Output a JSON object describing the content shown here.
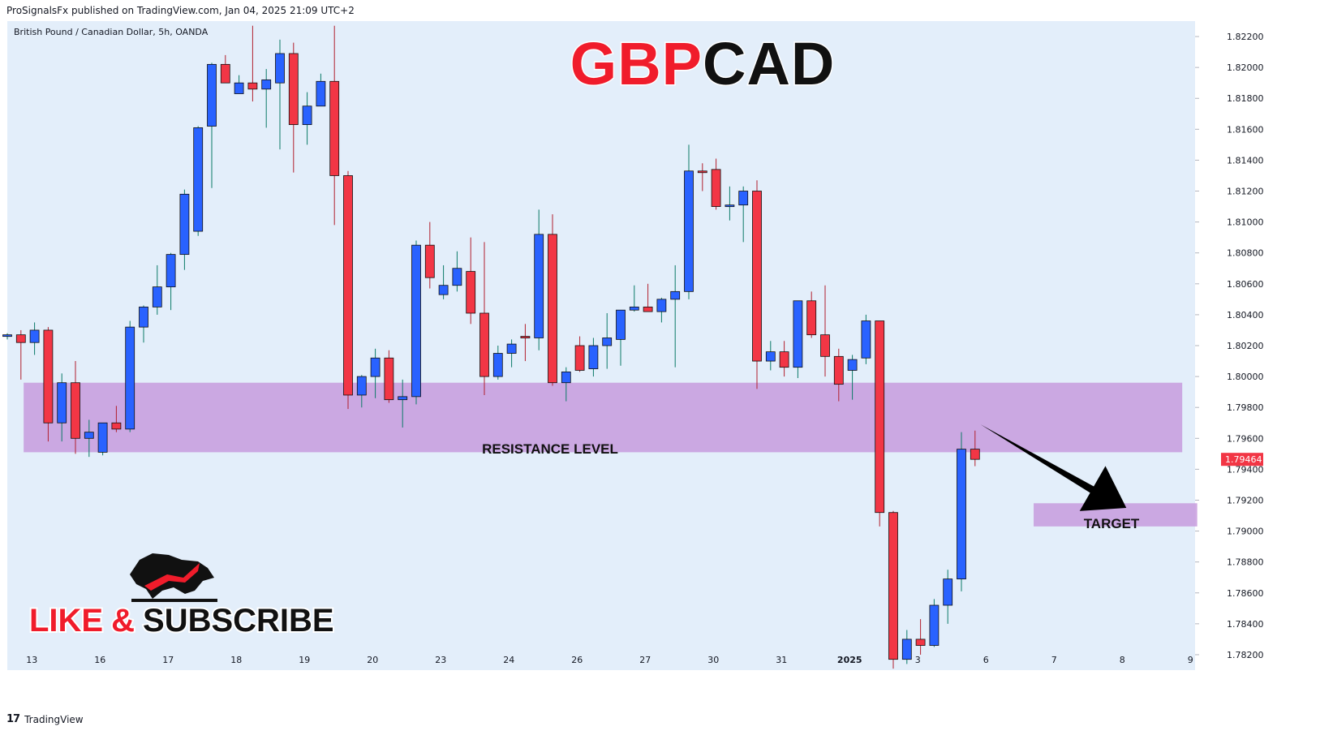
{
  "header": {
    "publisher_line": "ProSignalsFx published on TradingView.com, Jan 04, 2025 21:09 UTC+2"
  },
  "symbol_line": "British Pound / Canadian Dollar, 5h, OANDA",
  "title": {
    "part1": "GBP",
    "part2": "CAD",
    "color1": "#f01c2b",
    "color2": "#111111"
  },
  "footer": {
    "logo": "17",
    "brand": "TradingView"
  },
  "annotations": {
    "resistance_label": "RESISTANCE LEVEL",
    "target_label": "TARGET",
    "like_label": "LIKE",
    "amp_label": "&",
    "subscribe_label": "SUBSCRIBE"
  },
  "colors": {
    "up": "#2962ff",
    "down": "#f23645",
    "zone": "#c79bdd",
    "background": "#e3eefa",
    "price_tag": "#f23645"
  },
  "chart_data": {
    "type": "candlestick",
    "title": "GBPCAD",
    "ylim": [
      1.781,
      1.823
    ],
    "y_ticks": [
      "1.82200",
      "1.82000",
      "1.81800",
      "1.81600",
      "1.81400",
      "1.81200",
      "1.81000",
      "1.80800",
      "1.80600",
      "1.80400",
      "1.80200",
      "1.80000",
      "1.79800",
      "1.79600",
      "1.79400",
      "1.79200",
      "1.79000",
      "1.78800",
      "1.78600",
      "1.78400",
      "1.78200"
    ],
    "x_labels": [
      {
        "label": "13",
        "index": 1.8
      },
      {
        "label": "16",
        "index": 6.8
      },
      {
        "label": "17",
        "index": 11.8
      },
      {
        "label": "18",
        "index": 16.8
      },
      {
        "label": "19",
        "index": 21.8
      },
      {
        "label": "20",
        "index": 26.8
      },
      {
        "label": "23",
        "index": 31.8
      },
      {
        "label": "24",
        "index": 36.8
      },
      {
        "label": "26",
        "index": 41.8
      },
      {
        "label": "27",
        "index": 46.8
      },
      {
        "label": "30",
        "index": 51.8
      },
      {
        "label": "31",
        "index": 56.8
      },
      {
        "label": "2025",
        "index": 61.8
      },
      {
        "label": "3",
        "index": 66.8
      },
      {
        "label": "6",
        "index": 71.8
      },
      {
        "label": "7",
        "index": 76.8
      },
      {
        "label": "8",
        "index": 81.8
      },
      {
        "label": "9",
        "index": 86.8
      }
    ],
    "current_price": "1.79464",
    "resistance_zone": {
      "low": 1.7951,
      "high": 1.7996,
      "from_index": 1.2,
      "to_index": 86.2
    },
    "target_zone": {
      "low": 1.7903,
      "high": 1.7918,
      "from_index": 75.3,
      "to_index": 87.3
    },
    "arrow": {
      "from": [
        71.4,
        1.7969
      ],
      "to": [
        82.1,
        1.7915
      ]
    },
    "candles": [
      {
        "o": 1.80262,
        "h": 1.8028,
        "l": 1.8024,
        "c": 1.8027
      },
      {
        "o": 1.8027,
        "h": 1.803,
        "l": 1.7998,
        "c": 1.8022
      },
      {
        "o": 1.8022,
        "h": 1.8035,
        "l": 1.8014,
        "c": 1.803
      },
      {
        "o": 1.803,
        "h": 1.8032,
        "l": 1.7958,
        "c": 1.797
      },
      {
        "o": 1.797,
        "h": 1.8002,
        "l": 1.7958,
        "c": 1.7996
      },
      {
        "o": 1.7996,
        "h": 1.801,
        "l": 1.795,
        "c": 1.796
      },
      {
        "o": 1.796,
        "h": 1.7972,
        "l": 1.7948,
        "c": 1.7964
      },
      {
        "o": 1.7951,
        "h": 1.797,
        "l": 1.7949,
        "c": 1.797
      },
      {
        "o": 1.797,
        "h": 1.7981,
        "l": 1.7964,
        "c": 1.7966
      },
      {
        "o": 1.7966,
        "h": 1.8036,
        "l": 1.7964,
        "c": 1.8032
      },
      {
        "o": 1.8032,
        "h": 1.8046,
        "l": 1.8022,
        "c": 1.8045
      },
      {
        "o": 1.8045,
        "h": 1.8072,
        "l": 1.804,
        "c": 1.8058
      },
      {
        "o": 1.8058,
        "h": 1.808,
        "l": 1.8043,
        "c": 1.8079
      },
      {
        "o": 1.8079,
        "h": 1.8121,
        "l": 1.8069,
        "c": 1.8118
      },
      {
        "o": 1.8094,
        "h": 1.8162,
        "l": 1.8091,
        "c": 1.8161
      },
      {
        "o": 1.8162,
        "h": 1.8203,
        "l": 1.8122,
        "c": 1.8202
      },
      {
        "o": 1.8202,
        "h": 1.8208,
        "l": 1.819,
        "c": 1.819
      },
      {
        "o": 1.8183,
        "h": 1.8195,
        "l": 1.8183,
        "c": 1.819
      },
      {
        "o": 1.819,
        "h": 1.8227,
        "l": 1.8178,
        "c": 1.8186
      },
      {
        "o": 1.8186,
        "h": 1.8199,
        "l": 1.8161,
        "c": 1.8192
      },
      {
        "o": 1.819,
        "h": 1.8218,
        "l": 1.8147,
        "c": 1.8209
      },
      {
        "o": 1.8209,
        "h": 1.8216,
        "l": 1.8132,
        "c": 1.8163
      },
      {
        "o": 1.8163,
        "h": 1.8184,
        "l": 1.815,
        "c": 1.8175
      },
      {
        "o": 1.8175,
        "h": 1.8196,
        "l": 1.8176,
        "c": 1.8191
      },
      {
        "o": 1.8191,
        "h": 1.8227,
        "l": 1.8098,
        "c": 1.813
      },
      {
        "o": 1.813,
        "h": 1.8133,
        "l": 1.7979,
        "c": 1.7988
      },
      {
        "o": 1.7988,
        "h": 1.8001,
        "l": 1.798,
        "c": 1.8
      },
      {
        "o": 1.8,
        "h": 1.8018,
        "l": 1.7986,
        "c": 1.8012
      },
      {
        "o": 1.8012,
        "h": 1.8017,
        "l": 1.7983,
        "c": 1.7985
      },
      {
        "o": 1.7985,
        "h": 1.7998,
        "l": 1.7967,
        "c": 1.7987
      },
      {
        "o": 1.7987,
        "h": 1.8088,
        "l": 1.7982,
        "c": 1.8085
      },
      {
        "o": 1.8085,
        "h": 1.81,
        "l": 1.8057,
        "c": 1.8064
      },
      {
        "o": 1.8053,
        "h": 1.8072,
        "l": 1.805,
        "c": 1.8059
      },
      {
        "o": 1.8059,
        "h": 1.8081,
        "l": 1.8055,
        "c": 1.807
      },
      {
        "o": 1.8068,
        "h": 1.809,
        "l": 1.8034,
        "c": 1.8041
      },
      {
        "o": 1.8041,
        "h": 1.8087,
        "l": 1.7988,
        "c": 1.8
      },
      {
        "o": 1.8,
        "h": 1.802,
        "l": 1.7998,
        "c": 1.8015
      },
      {
        "o": 1.8015,
        "h": 1.8024,
        "l": 1.8006,
        "c": 1.8021
      },
      {
        "o": 1.8026,
        "h": 1.8034,
        "l": 1.801,
        "c": 1.8025
      },
      {
        "o": 1.8025,
        "h": 1.8108,
        "l": 1.8017,
        "c": 1.8092
      },
      {
        "o": 1.8092,
        "h": 1.8105,
        "l": 1.7994,
        "c": 1.7996
      },
      {
        "o": 1.7996,
        "h": 1.8006,
        "l": 1.7984,
        "c": 1.8003
      },
      {
        "o": 1.802,
        "h": 1.8026,
        "l": 1.8003,
        "c": 1.8004
      },
      {
        "o": 1.8005,
        "h": 1.8025,
        "l": 1.8,
        "c": 1.802
      },
      {
        "o": 1.802,
        "h": 1.8041,
        "l": 1.8005,
        "c": 1.8025
      },
      {
        "o": 1.8024,
        "h": 1.8043,
        "l": 1.8007,
        "c": 1.8043
      },
      {
        "o": 1.8043,
        "h": 1.8059,
        "l": 1.8042,
        "c": 1.8045
      },
      {
        "o": 1.8045,
        "h": 1.806,
        "l": 1.8042,
        "c": 1.8042
      },
      {
        "o": 1.8042,
        "h": 1.8051,
        "l": 1.8035,
        "c": 1.805
      },
      {
        "o": 1.805,
        "h": 1.8072,
        "l": 1.8006,
        "c": 1.8055
      },
      {
        "o": 1.8055,
        "h": 1.815,
        "l": 1.805,
        "c": 1.8133
      },
      {
        "o": 1.8133,
        "h": 1.8138,
        "l": 1.812,
        "c": 1.8132
      },
      {
        "o": 1.8134,
        "h": 1.8141,
        "l": 1.8108,
        "c": 1.811
      },
      {
        "o": 1.811,
        "h": 1.8123,
        "l": 1.8101,
        "c": 1.8111
      },
      {
        "o": 1.8111,
        "h": 1.8123,
        "l": 1.8087,
        "c": 1.812
      },
      {
        "o": 1.812,
        "h": 1.8127,
        "l": 1.7992,
        "c": 1.801
      },
      {
        "o": 1.801,
        "h": 1.8023,
        "l": 1.8004,
        "c": 1.8016
      },
      {
        "o": 1.8016,
        "h": 1.8023,
        "l": 1.8,
        "c": 1.8006
      },
      {
        "o": 1.8006,
        "h": 1.8049,
        "l": 1.7999,
        "c": 1.8049
      },
      {
        "o": 1.8049,
        "h": 1.8055,
        "l": 1.8025,
        "c": 1.8027
      },
      {
        "o": 1.8027,
        "h": 1.8059,
        "l": 1.8,
        "c": 1.8013
      },
      {
        "o": 1.8013,
        "h": 1.8018,
        "l": 1.7984,
        "c": 1.7995
      },
      {
        "o": 1.8004,
        "h": 1.8014,
        "l": 1.7985,
        "c": 1.8011
      },
      {
        "o": 1.8012,
        "h": 1.804,
        "l": 1.8008,
        "c": 1.8036
      },
      {
        "o": 1.8036,
        "h": 1.8036,
        "l": 1.7903,
        "c": 1.7912
      },
      {
        "o": 1.7912,
        "h": 1.7913,
        "l": 1.7811,
        "c": 1.7817
      },
      {
        "o": 1.7817,
        "h": 1.7836,
        "l": 1.7814,
        "c": 1.783
      },
      {
        "o": 1.783,
        "h": 1.7843,
        "l": 1.782,
        "c": 1.7826
      },
      {
        "o": 1.7826,
        "h": 1.7856,
        "l": 1.7825,
        "c": 1.7852
      },
      {
        "o": 1.7852,
        "h": 1.7875,
        "l": 1.784,
        "c": 1.7869
      },
      {
        "o": 1.7869,
        "h": 1.7964,
        "l": 1.7861,
        "c": 1.7953
      },
      {
        "o": 1.7953,
        "h": 1.7965,
        "l": 1.7942,
        "c": 1.79464
      }
    ]
  }
}
